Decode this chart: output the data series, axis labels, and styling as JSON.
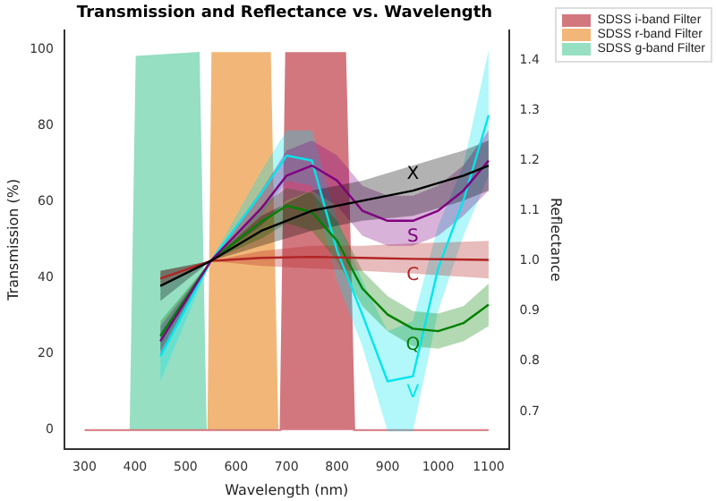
{
  "chart_data": {
    "type": "line",
    "title": "Transmission and Reflectance vs. Wavelength",
    "xlabel": "Wavelength (nm)",
    "ylabel": "Transmission (%)",
    "y2label": "Reflectance",
    "xlim": [
      260,
      1140
    ],
    "xticks": [
      300,
      400,
      500,
      600,
      700,
      800,
      900,
      1000,
      1100
    ],
    "ylim": [
      -5,
      105
    ],
    "yticks": [
      0,
      20,
      40,
      60,
      80,
      100
    ],
    "y2lim": [
      0.625,
      1.46
    ],
    "y2ticks": [
      0.7,
      0.8,
      0.9,
      {
        "value": 1,
        "label": "1.0"
      },
      1.1,
      1.2,
      1.3,
      1.4
    ],
    "legend": "top right",
    "grid": false,
    "marker": "none",
    "line_style": "solid",
    "series": [
      {
        "name": "SDSS i-band Filter",
        "type": "area",
        "color": "#d3777f",
        "x": [
          300,
          688,
          699,
          816,
          834,
          1100
        ],
        "values": [
          0,
          0,
          99,
          99,
          0,
          0
        ]
      },
      {
        "name": "SDSS r-band Filter",
        "type": "area",
        "color": "#f2b778",
        "x": [
          545,
          553,
          667,
          682
        ],
        "values": [
          0,
          99,
          99,
          0
        ]
      },
      {
        "name": "SDSS g-band Filter",
        "type": "area",
        "color": "#96dfc3",
        "x": [
          391,
          403,
          526,
          540
        ],
        "values": [
          0,
          98,
          99,
          0
        ]
      },
      {
        "name": "X",
        "axis": "y2",
        "color": "#000000",
        "x": [
          450,
          550,
          650,
          750,
          850,
          950,
          1050,
          1100
        ],
        "values": [
          0.95,
          1.0,
          1.06,
          1.1,
          1.12,
          1.14,
          1.17,
          1.19
        ],
        "lower": [
          0.92,
          1.0,
          1.03,
          1.06,
          1.08,
          1.09,
          1.12,
          1.14
        ],
        "upper": [
          0.98,
          1.0,
          1.09,
          1.14,
          1.16,
          1.19,
          1.22,
          1.24
        ]
      },
      {
        "name": "S",
        "axis": "y2",
        "color": "#800080",
        "x": [
          450,
          550,
          650,
          700,
          750,
          800,
          850,
          900,
          950,
          1000,
          1050,
          1100
        ],
        "values": [
          0.84,
          1.0,
          1.105,
          1.17,
          1.19,
          1.16,
          1.1,
          1.08,
          1.08,
          1.1,
          1.14,
          1.2
        ],
        "lower": [
          0.81,
          1.0,
          1.07,
          1.12,
          1.14,
          1.11,
          1.05,
          1.03,
          1.03,
          1.05,
          1.09,
          1.14
        ],
        "upper": [
          0.87,
          1.0,
          1.14,
          1.22,
          1.24,
          1.21,
          1.15,
          1.13,
          1.13,
          1.15,
          1.19,
          1.26
        ]
      },
      {
        "name": "C",
        "axis": "y2",
        "color": "#b22222",
        "x": [
          450,
          550,
          650,
          750,
          850,
          950,
          1100
        ],
        "values": [
          0.965,
          1.0,
          1.006,
          1.008,
          1.006,
          1.004,
          1.002
        ],
        "lower": [
          0.95,
          1.0,
          0.99,
          0.985,
          0.98,
          0.975,
          0.965
        ],
        "upper": [
          0.98,
          1.0,
          1.02,
          1.03,
          1.03,
          1.035,
          1.04
        ]
      },
      {
        "name": "Q",
        "axis": "y2",
        "color": "#008000",
        "x": [
          450,
          550,
          650,
          700,
          750,
          800,
          850,
          900,
          950,
          1000,
          1050,
          1100
        ],
        "values": [
          0.85,
          1.0,
          1.078,
          1.11,
          1.097,
          1.04,
          0.945,
          0.893,
          0.865,
          0.86,
          0.876,
          0.913
        ],
        "lower": [
          0.82,
          1.0,
          1.045,
          1.075,
          1.06,
          1.0,
          0.91,
          0.86,
          0.83,
          0.825,
          0.84,
          0.87
        ],
        "upper": [
          0.88,
          1.0,
          1.11,
          1.145,
          1.135,
          1.08,
          0.98,
          0.93,
          0.9,
          0.895,
          0.91,
          0.955
        ]
      },
      {
        "name": "V",
        "axis": "y2",
        "color": "#00e5ee",
        "x": [
          450,
          550,
          650,
          700,
          750,
          800,
          850,
          900,
          950,
          1000,
          1050,
          1100
        ],
        "values": [
          0.81,
          1.0,
          1.135,
          1.21,
          1.2,
          1.02,
          0.893,
          0.76,
          0.77,
          0.985,
          1.12,
          1.29
        ],
        "lower": [
          0.76,
          1.0,
          1.09,
          1.16,
          1.15,
          0.96,
          0.83,
          0.66,
          0.66,
          0.9,
          1.05,
          1.17
        ],
        "upper": [
          0.86,
          1.0,
          1.18,
          1.26,
          1.26,
          1.08,
          0.96,
          0.86,
          0.88,
          1.07,
          1.19,
          1.42
        ]
      }
    ]
  }
}
